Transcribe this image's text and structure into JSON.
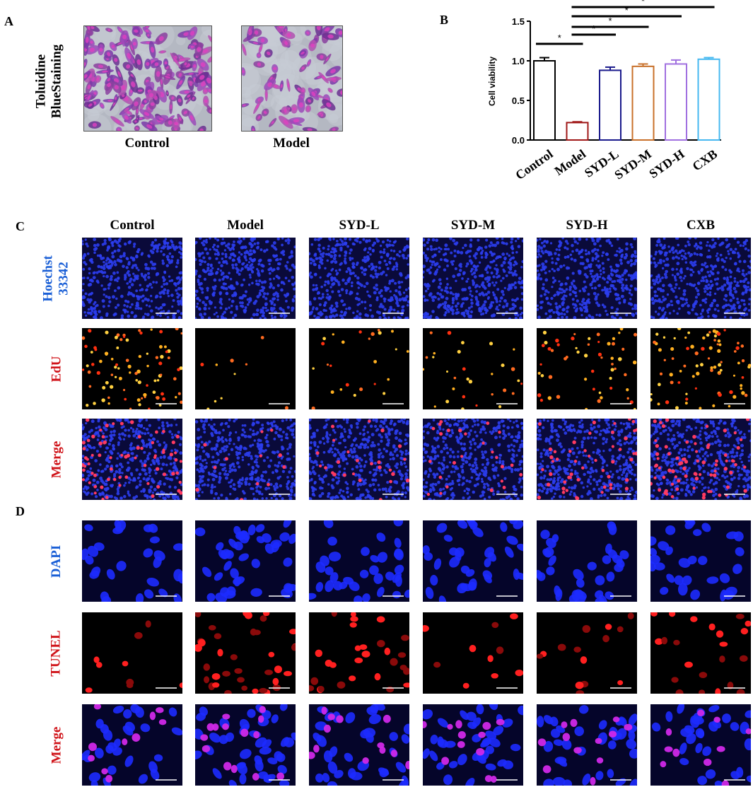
{
  "panels": {
    "a": "A",
    "b": "B",
    "c": "C",
    "d": "D"
  },
  "panel_a": {
    "row_label_line1": "Toluidine",
    "row_label_line2": "BlueStaining",
    "captions": [
      "Control",
      "Model"
    ]
  },
  "panel_c": {
    "columns": [
      "Control",
      "Model",
      "SYD-L",
      "SYD-M",
      "SYD-H",
      "CXB"
    ],
    "rows": [
      {
        "label_line1": "Hoechst",
        "label_line2": "33342",
        "color": "#1a5fd6"
      },
      {
        "label_line1": "EdU",
        "label_line2": "",
        "color": "#d0141a"
      },
      {
        "label_line1": "Merge",
        "label_line2": "",
        "color": "#d0141a"
      }
    ]
  },
  "panel_d": {
    "rows": [
      {
        "label": "DAPI",
        "color": "#1a5fd6"
      },
      {
        "label": "TUNEL",
        "color": "#d0141a"
      },
      {
        "label": "Merge",
        "color": "#d0141a"
      }
    ]
  },
  "chart_data": {
    "type": "bar",
    "ylabel": "Cell viability",
    "xlabel": "",
    "categories": [
      "Control",
      "Model",
      "SYD-L",
      "SYD-M",
      "SYD-H",
      "CXB"
    ],
    "values": [
      1.0,
      0.22,
      0.88,
      0.93,
      0.96,
      1.02
    ],
    "errors": [
      0.04,
      0.01,
      0.04,
      0.03,
      0.05,
      0.02
    ],
    "colors": [
      "#000000",
      "#a01818",
      "#1a1a8c",
      "#c8702a",
      "#a070e0",
      "#46b8f0"
    ],
    "ylim": [
      0,
      1.5
    ],
    "yticks": [
      0.0,
      0.5,
      1.0,
      1.5
    ],
    "ytick_labels": [
      "0.0",
      "0.5",
      "1.0",
      "1.5"
    ],
    "significance": [
      {
        "from": "Control",
        "to": "Model",
        "label": "*"
      },
      {
        "from": "Model",
        "to": "SYD-L",
        "label": "*"
      },
      {
        "from": "Model",
        "to": "SYD-M",
        "label": "*"
      },
      {
        "from": "Model",
        "to": "SYD-H",
        "label": "*"
      },
      {
        "from": "Model",
        "to": "CXB",
        "label": "*"
      }
    ],
    "grid": false,
    "legend": "none"
  }
}
